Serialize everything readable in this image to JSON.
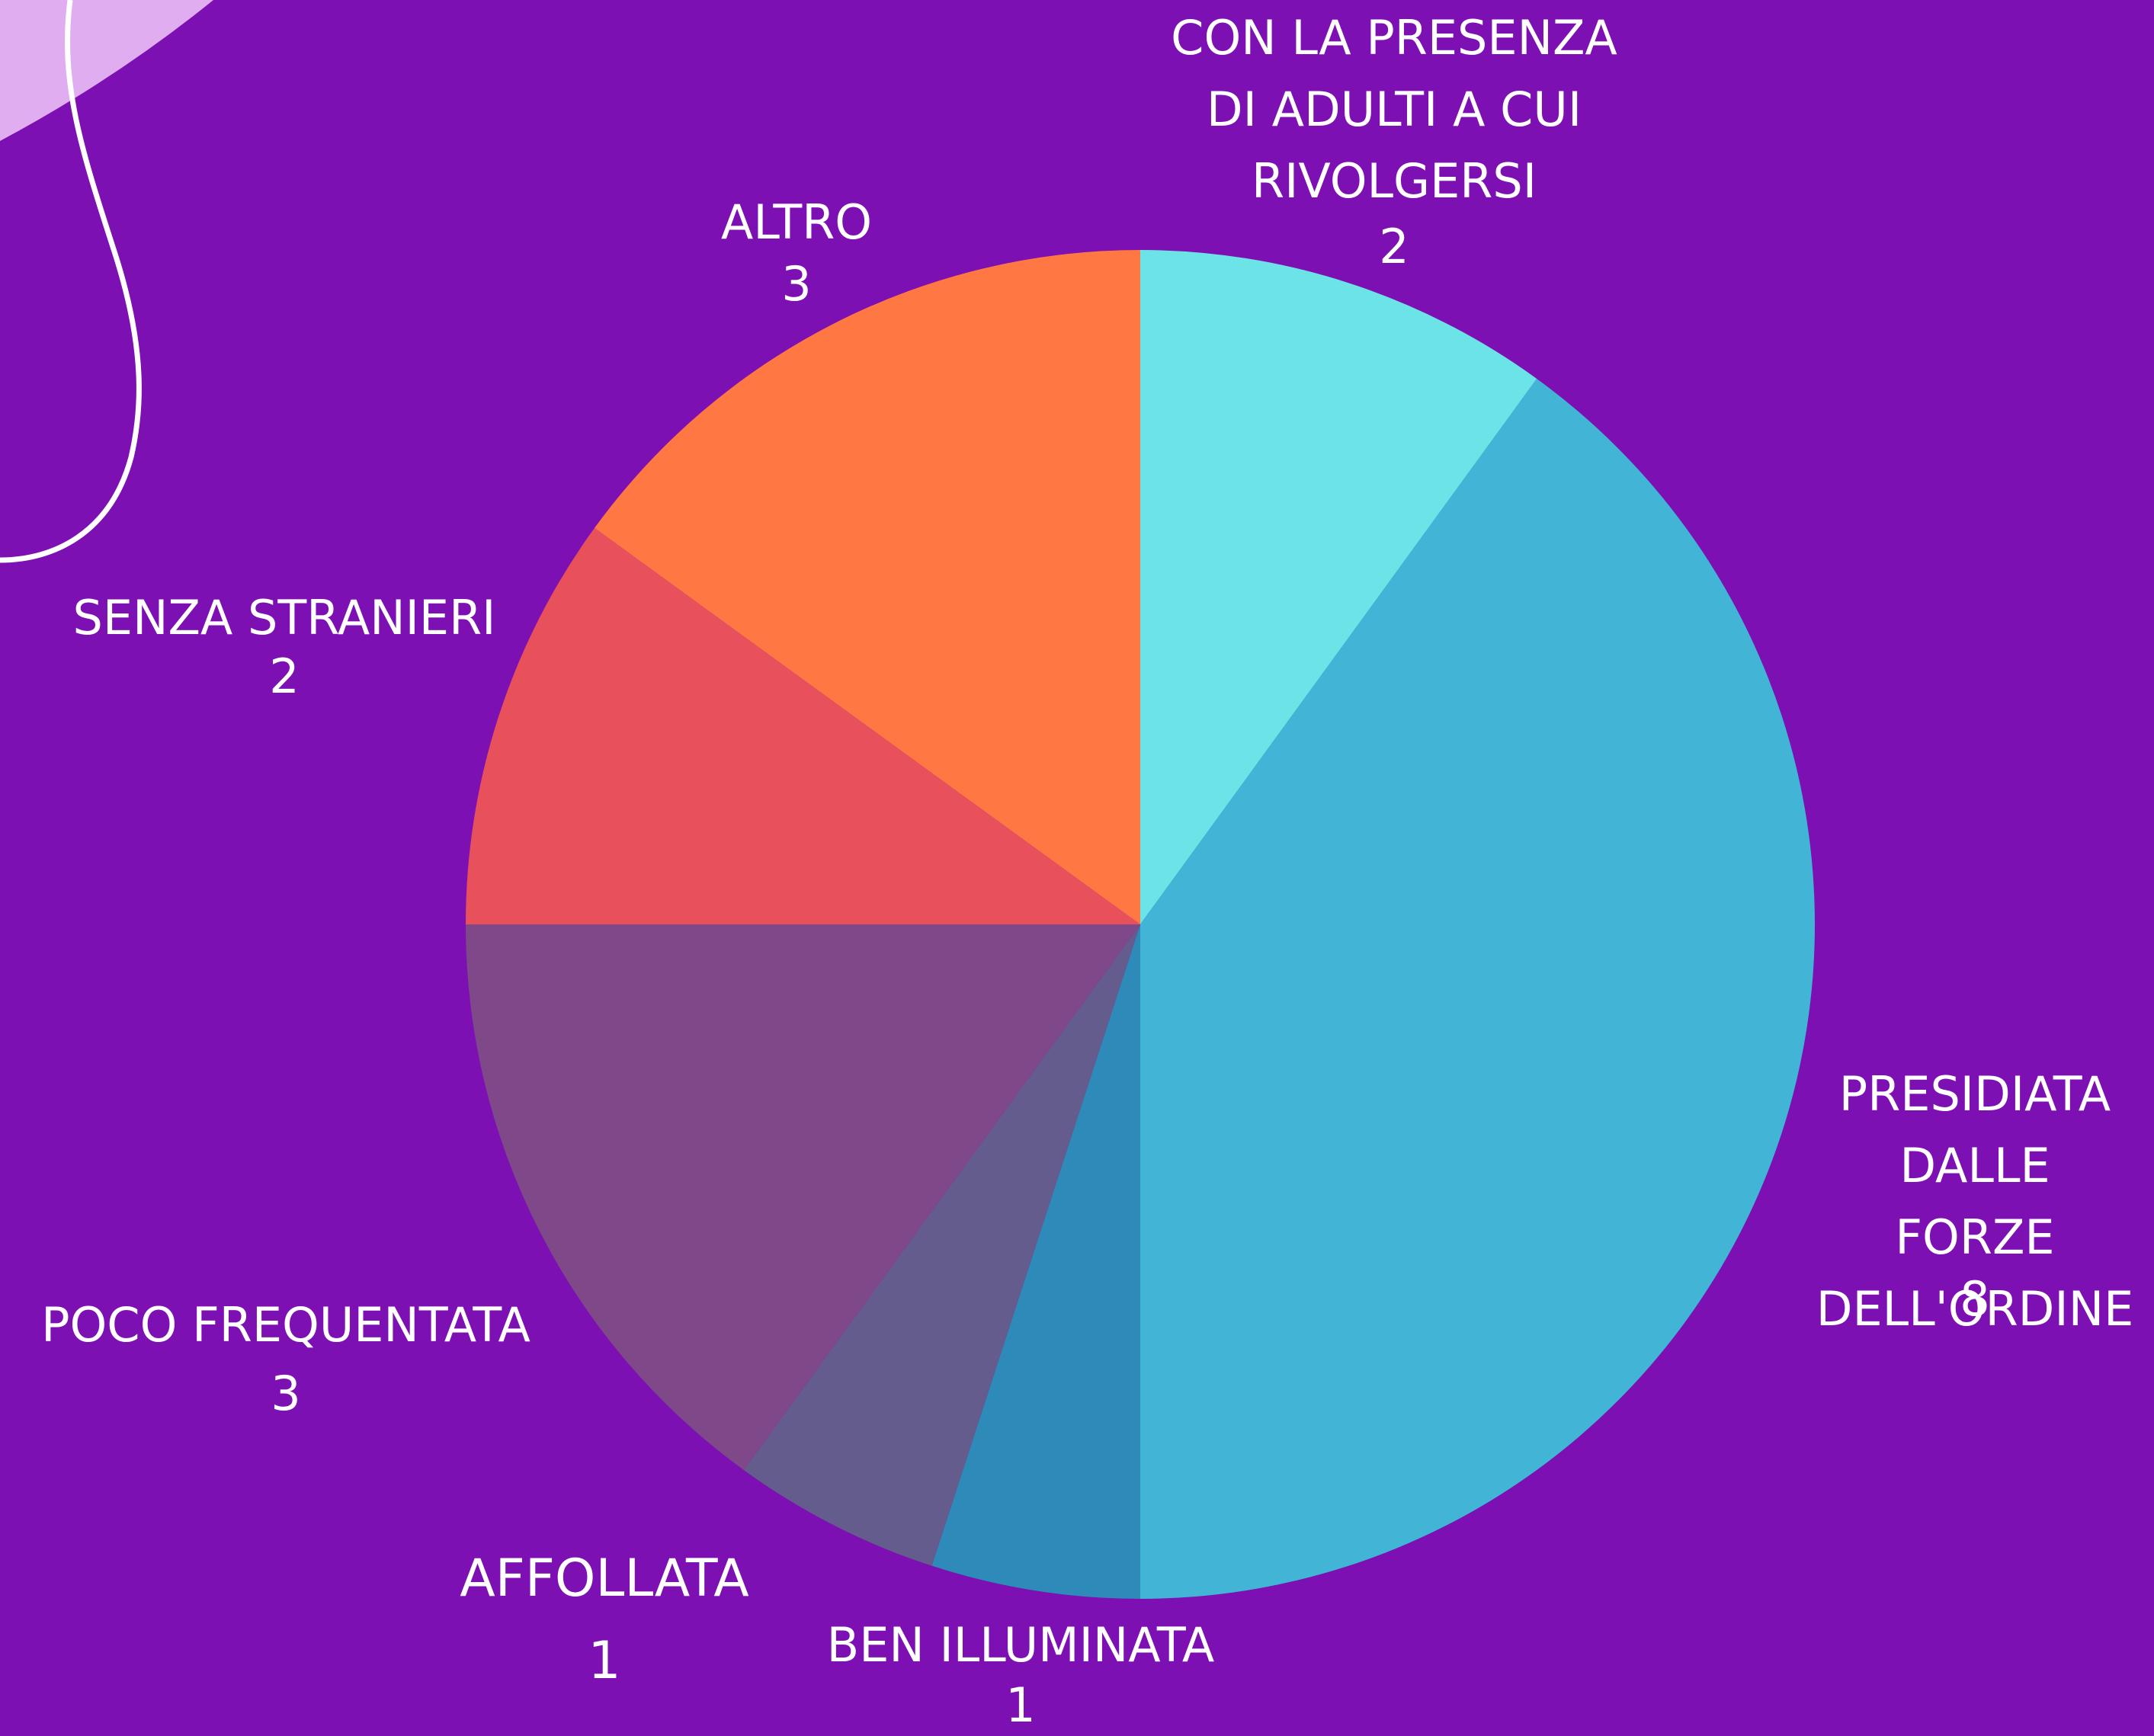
{
  "chart_data": {
    "type": "pie",
    "categories": [
      "CON LA PRESENZA\nDI ADULTI A CUI\nRIVOLGERSI",
      "PRESIDIATA\nDALLE FORZE\nDELL'ORDINE",
      "BEN ILLUMINATA",
      "AFFOLLATA",
      "POCO FREQUENTATA",
      "SENZA STRANIERI",
      "ALTRO"
    ],
    "values": [
      2,
      8,
      1,
      1,
      3,
      2,
      3
    ],
    "colors": [
      "#6ce3e6",
      "#42b5d6",
      "#2e8ab8",
      "#655c8e",
      "#7f4888",
      "#e8505b",
      "#ff7844"
    ]
  }
}
